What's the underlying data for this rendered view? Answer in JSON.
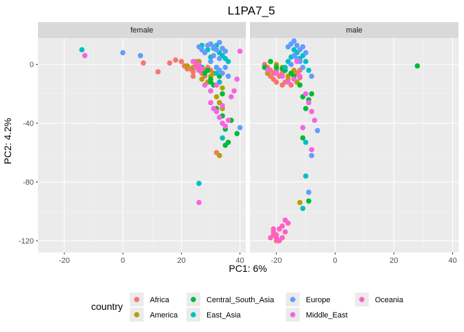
{
  "chart_data": {
    "type": "scatter",
    "title": "L1PA7_5",
    "xlabel": "PC1: 6%",
    "ylabel": "PC2: 4.2%",
    "xlim": [
      -29,
      42
    ],
    "ylim": [
      -128,
      18
    ],
    "x_ticks": [
      -20,
      0,
      20,
      40
    ],
    "y_ticks": [
      0,
      -40,
      -80,
      -120
    ],
    "x_tick_labels": [
      "-20",
      "0",
      "20",
      "40"
    ],
    "y_tick_labels": [
      "0",
      "-40",
      "-80",
      "-120"
    ],
    "grid": true,
    "legend": {
      "title": "country",
      "position": "bottom"
    },
    "facets": [
      "female",
      "male"
    ],
    "series": [
      {
        "name": "Africa",
        "color": "#F8766D",
        "female": [
          [
            7,
            1
          ],
          [
            12,
            -5
          ],
          [
            16,
            1
          ],
          [
            18,
            3
          ],
          [
            20,
            2
          ],
          [
            21,
            -1
          ],
          [
            22,
            -3
          ],
          [
            23,
            -3
          ],
          [
            24,
            -5
          ],
          [
            24,
            -8
          ],
          [
            25,
            0
          ],
          [
            25,
            2
          ],
          [
            26,
            -3
          ],
          [
            27,
            -6
          ],
          [
            28,
            -8
          ],
          [
            29,
            -2
          ],
          [
            30,
            -4
          ],
          [
            32,
            -60
          ]
        ],
        "male": [
          [
            -24,
            0
          ],
          [
            -23,
            -2
          ],
          [
            -22,
            -4
          ],
          [
            -22,
            -8
          ],
          [
            -21,
            -6
          ],
          [
            -21,
            -10
          ],
          [
            -20,
            -4
          ],
          [
            -20,
            -12
          ],
          [
            -19,
            -8
          ],
          [
            -18,
            -6
          ],
          [
            -18,
            -14
          ],
          [
            -17,
            -12
          ],
          [
            -16,
            -10
          ],
          [
            -15,
            -14
          ],
          [
            -13,
            -6
          ],
          [
            -12,
            -4
          ],
          [
            -12,
            -9
          ],
          [
            -21,
            -116
          ],
          [
            -20,
            -120
          ]
        ]
      },
      {
        "name": "America",
        "color": "#B79F00",
        "female": [
          [
            22,
            -1
          ],
          [
            24,
            -2
          ],
          [
            26,
            2
          ],
          [
            27,
            -10
          ],
          [
            28,
            -4
          ],
          [
            29,
            -12
          ],
          [
            30,
            -8
          ],
          [
            31,
            -6
          ],
          [
            32,
            -22
          ],
          [
            33,
            -26
          ],
          [
            34,
            -30
          ],
          [
            34,
            -16
          ],
          [
            33,
            -62
          ]
        ],
        "male": [
          [
            -23,
            -6
          ],
          [
            -20,
            0
          ],
          [
            -18,
            -2
          ],
          [
            -16,
            -8
          ],
          [
            -14,
            -4
          ],
          [
            -13,
            -12
          ],
          [
            -12,
            -94
          ]
        ]
      },
      {
        "name": "Central_South_Asia",
        "color": "#00BA38",
        "female": [
          [
            27,
            -2
          ],
          [
            28,
            -6
          ],
          [
            29,
            -4
          ],
          [
            30,
            -10
          ],
          [
            31,
            -14
          ],
          [
            32,
            -2
          ],
          [
            33,
            -8
          ],
          [
            34,
            -20
          ],
          [
            34,
            -35
          ],
          [
            35,
            -44
          ],
          [
            35,
            -55
          ],
          [
            36,
            -53
          ],
          [
            37,
            -38
          ],
          [
            39,
            -47
          ],
          [
            30,
            -12
          ],
          [
            32,
            -30
          ]
        ],
        "male": [
          [
            -24,
            -2
          ],
          [
            -22,
            2
          ],
          [
            -20,
            -2
          ],
          [
            -18,
            -3
          ],
          [
            -17,
            -4
          ],
          [
            -15,
            -6
          ],
          [
            -14,
            -8
          ],
          [
            -12,
            -14
          ],
          [
            -11,
            -22
          ],
          [
            -10,
            -30
          ],
          [
            -9,
            -24
          ],
          [
            -8,
            -20
          ],
          [
            -11,
            -50
          ],
          [
            -9,
            -93
          ],
          [
            28,
            -1
          ]
        ]
      },
      {
        "name": "East_Asia",
        "color": "#00BFC4",
        "female": [
          [
            -14,
            10
          ],
          [
            26,
            -81
          ],
          [
            27,
            13
          ],
          [
            29,
            10
          ],
          [
            30,
            5
          ],
          [
            31,
            11
          ],
          [
            32,
            13
          ],
          [
            33,
            8
          ],
          [
            34,
            6
          ],
          [
            35,
            4
          ],
          [
            36,
            2
          ],
          [
            32,
            -6
          ],
          [
            33,
            -12
          ],
          [
            34,
            -50
          ]
        ],
        "male": [
          [
            -17,
            -2
          ],
          [
            -16,
            2
          ],
          [
            -15,
            5
          ],
          [
            -14,
            10
          ],
          [
            -13,
            8
          ],
          [
            -12,
            4
          ],
          [
            -11,
            6
          ],
          [
            -10,
            2
          ],
          [
            -9,
            -4
          ],
          [
            -10,
            -53
          ],
          [
            -10,
            -76
          ],
          [
            -11,
            -98
          ]
        ]
      },
      {
        "name": "Europe",
        "color": "#619CFF",
        "female": [
          [
            0,
            8
          ],
          [
            6,
            6
          ],
          [
            26,
            12
          ],
          [
            27,
            10
          ],
          [
            28,
            8
          ],
          [
            29,
            13
          ],
          [
            30,
            14
          ],
          [
            31,
            12
          ],
          [
            32,
            10
          ],
          [
            33,
            15
          ],
          [
            34,
            11
          ],
          [
            35,
            9
          ],
          [
            33,
            4
          ],
          [
            31,
            6
          ],
          [
            30,
            2
          ],
          [
            32,
            -2
          ],
          [
            34,
            -6
          ],
          [
            36,
            -8
          ],
          [
            35,
            -2
          ],
          [
            33,
            -4
          ],
          [
            40,
            -43
          ]
        ],
        "male": [
          [
            -16,
            12
          ],
          [
            -15,
            14
          ],
          [
            -14,
            16
          ],
          [
            -13,
            13
          ],
          [
            -12,
            10
          ],
          [
            -11,
            12
          ],
          [
            -10,
            8
          ],
          [
            -14,
            6
          ],
          [
            -13,
            4
          ],
          [
            -15,
            0
          ],
          [
            -12,
            2
          ],
          [
            -11,
            -2
          ],
          [
            -8,
            -8
          ],
          [
            -6,
            -45
          ],
          [
            -8,
            -62
          ],
          [
            -9,
            -87
          ]
        ]
      },
      {
        "name": "Middle_East",
        "color": "#F564E3",
        "female": [
          [
            -13,
            6
          ],
          [
            24,
            2
          ],
          [
            25,
            -2
          ],
          [
            26,
            0
          ],
          [
            27,
            -3
          ],
          [
            28,
            -14
          ],
          [
            30,
            -18
          ],
          [
            30,
            -26
          ],
          [
            31,
            -30
          ],
          [
            32,
            -32
          ],
          [
            33,
            -36
          ],
          [
            34,
            -40
          ],
          [
            35,
            -42
          ],
          [
            36,
            -38
          ],
          [
            37,
            -22
          ],
          [
            38,
            -18
          ],
          [
            39,
            -10
          ],
          [
            40,
            9
          ],
          [
            34,
            -28
          ],
          [
            32,
            -14
          ],
          [
            26,
            -94
          ]
        ],
        "male": [
          [
            -23,
            -4
          ],
          [
            -20,
            -6
          ],
          [
            -18,
            -8
          ],
          [
            -16,
            -12
          ],
          [
            -14,
            -10
          ],
          [
            -12,
            -8
          ],
          [
            -10,
            -20
          ],
          [
            -9,
            -26
          ],
          [
            -8,
            -32
          ],
          [
            -7,
            -38
          ],
          [
            -11,
            -43
          ],
          [
            -8,
            -58
          ],
          [
            -13,
            2
          ]
        ]
      },
      {
        "name": "Oceania",
        "color": "#FF61C3",
        "female": [
          [
            25,
            -1
          ],
          [
            26,
            -4
          ]
        ],
        "male": [
          [
            -22,
            -118
          ],
          [
            -21,
            -114
          ],
          [
            -20,
            -116
          ],
          [
            -19,
            -112
          ],
          [
            -18,
            -110
          ],
          [
            -17,
            -106
          ],
          [
            -18,
            -118
          ],
          [
            -17,
            -114
          ],
          [
            -19,
            -120
          ],
          [
            -20,
            -118
          ],
          [
            -21,
            -112
          ],
          [
            -16,
            -108
          ]
        ]
      }
    ]
  }
}
